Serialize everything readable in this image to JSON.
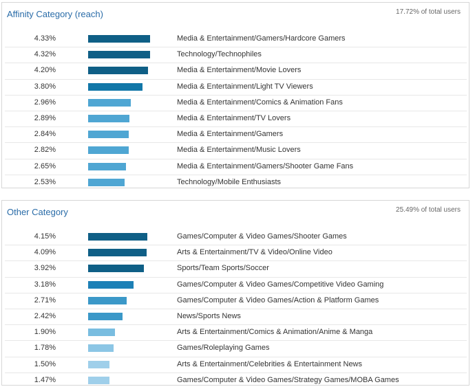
{
  "chart_data": [
    {
      "type": "bar",
      "orientation": "horizontal",
      "title": "Affinity Category (reach)",
      "summary": "17.72% of total users",
      "categories": [
        "Media & Entertainment/Gamers/Hardcore Gamers",
        "Technology/Technophiles",
        "Media & Entertainment/Movie Lovers",
        "Media & Entertainment/Light TV Viewers",
        "Media & Entertainment/Comics & Animation Fans",
        "Media & Entertainment/TV Lovers",
        "Media & Entertainment/Gamers",
        "Media & Entertainment/Music Lovers",
        "Media & Entertainment/Gamers/Shooter Game Fans",
        "Technology/Mobile Enthusiasts"
      ],
      "value_labels": [
        "4.33%",
        "4.32%",
        "4.20%",
        "3.80%",
        "2.96%",
        "2.89%",
        "2.84%",
        "2.82%",
        "2.65%",
        "2.53%"
      ],
      "values": [
        4.33,
        4.32,
        4.2,
        3.8,
        2.96,
        2.89,
        2.84,
        2.82,
        2.65,
        2.53
      ],
      "colors": [
        "#0f5f86",
        "#0f5f86",
        "#0f5f86",
        "#1277a8",
        "#4fa6d3",
        "#4fa6d3",
        "#4fa6d3",
        "#4fa6d3",
        "#4fa6d3",
        "#4fa6d3"
      ]
    },
    {
      "type": "bar",
      "orientation": "horizontal",
      "title": "Other Category",
      "summary": "25.49% of total users",
      "categories": [
        "Games/Computer & Video Games/Shooter Games",
        "Arts & Entertainment/TV & Video/Online Video",
        "Sports/Team Sports/Soccer",
        "Games/Computer & Video Games/Competitive Video Gaming",
        "Games/Computer & Video Games/Action & Platform Games",
        "News/Sports News",
        "Arts & Entertainment/Comics & Animation/Anime & Manga",
        "Games/Roleplaying Games",
        "Arts & Entertainment/Celebrities & Entertainment News",
        "Games/Computer & Video Games/Strategy Games/MOBA Games"
      ],
      "value_labels": [
        "4.15%",
        "4.09%",
        "3.92%",
        "3.18%",
        "2.71%",
        "2.42%",
        "1.90%",
        "1.78%",
        "1.50%",
        "1.47%"
      ],
      "values": [
        4.15,
        4.09,
        3.92,
        3.18,
        2.71,
        2.42,
        1.9,
        1.78,
        1.5,
        1.47
      ],
      "colors": [
        "#0f5f86",
        "#0f5f86",
        "#0f5f86",
        "#1d80b6",
        "#3b98c8",
        "#3b98c8",
        "#79bde0",
        "#8cc6e5",
        "#9fcfea",
        "#9fcfea"
      ]
    }
  ]
}
